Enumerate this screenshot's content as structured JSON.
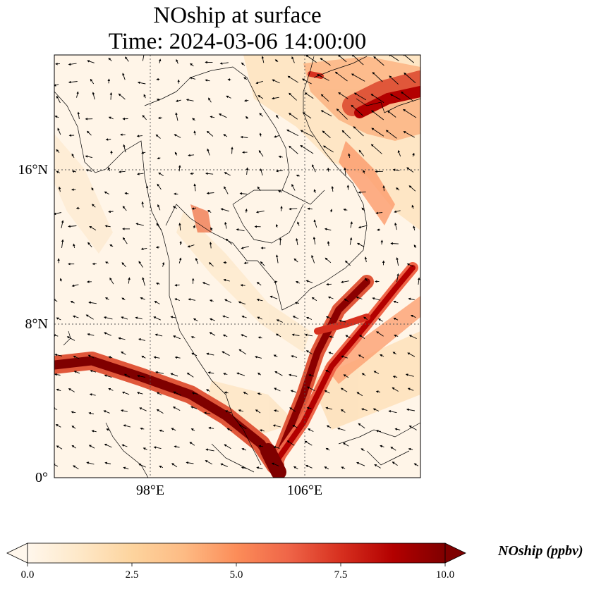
{
  "title": {
    "line1": "NOship at surface",
    "line2": "Time: 2024-03-06 14:00:00"
  },
  "map": {
    "lat_labels": [
      "16°N",
      "8°N",
      "0°"
    ],
    "lon_labels": [
      "98°E",
      "106°E"
    ],
    "colormap": "OrRd",
    "gridlines": "dotted"
  },
  "colorbar": {
    "label": "NOship (ppbv)",
    "ticks": [
      "0.0",
      "2.5",
      "5.0",
      "7.5",
      "10.0"
    ],
    "min": 0,
    "max": 10,
    "extend": "both",
    "colors": [
      "#fff7ec",
      "#fee8c8",
      "#fdd49e",
      "#fdbb84",
      "#fc8d59",
      "#ef6548",
      "#d7301f",
      "#b30000",
      "#7f0000"
    ]
  }
}
